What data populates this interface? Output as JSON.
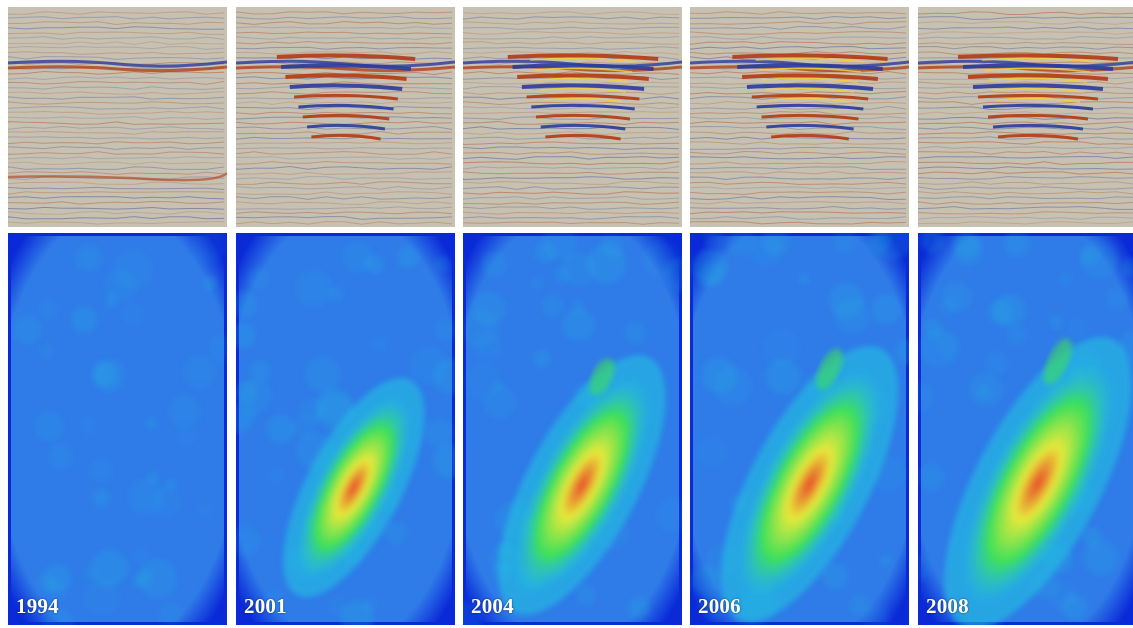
{
  "panels": [
    {
      "year": "1994",
      "plume": 0.0
    },
    {
      "year": "2001",
      "plume": 0.55
    },
    {
      "year": "2004",
      "plume": 0.8
    },
    {
      "year": "2006",
      "plume": 0.9
    },
    {
      "year": "2008",
      "plume": 1.0
    }
  ],
  "colors": {
    "seismic_background": "#c7c1b1",
    "seismic_positive": "#b23a12",
    "seismic_negative": "#2a3c9c",
    "seismic_bright": "#f3d13a",
    "map_border": "#0a2ad8",
    "map_background": "#2f7be8",
    "map_mid": "#22c8e0",
    "map_green": "#3ee05a",
    "map_yellow": "#e6e83a",
    "map_red": "#e8452a"
  }
}
